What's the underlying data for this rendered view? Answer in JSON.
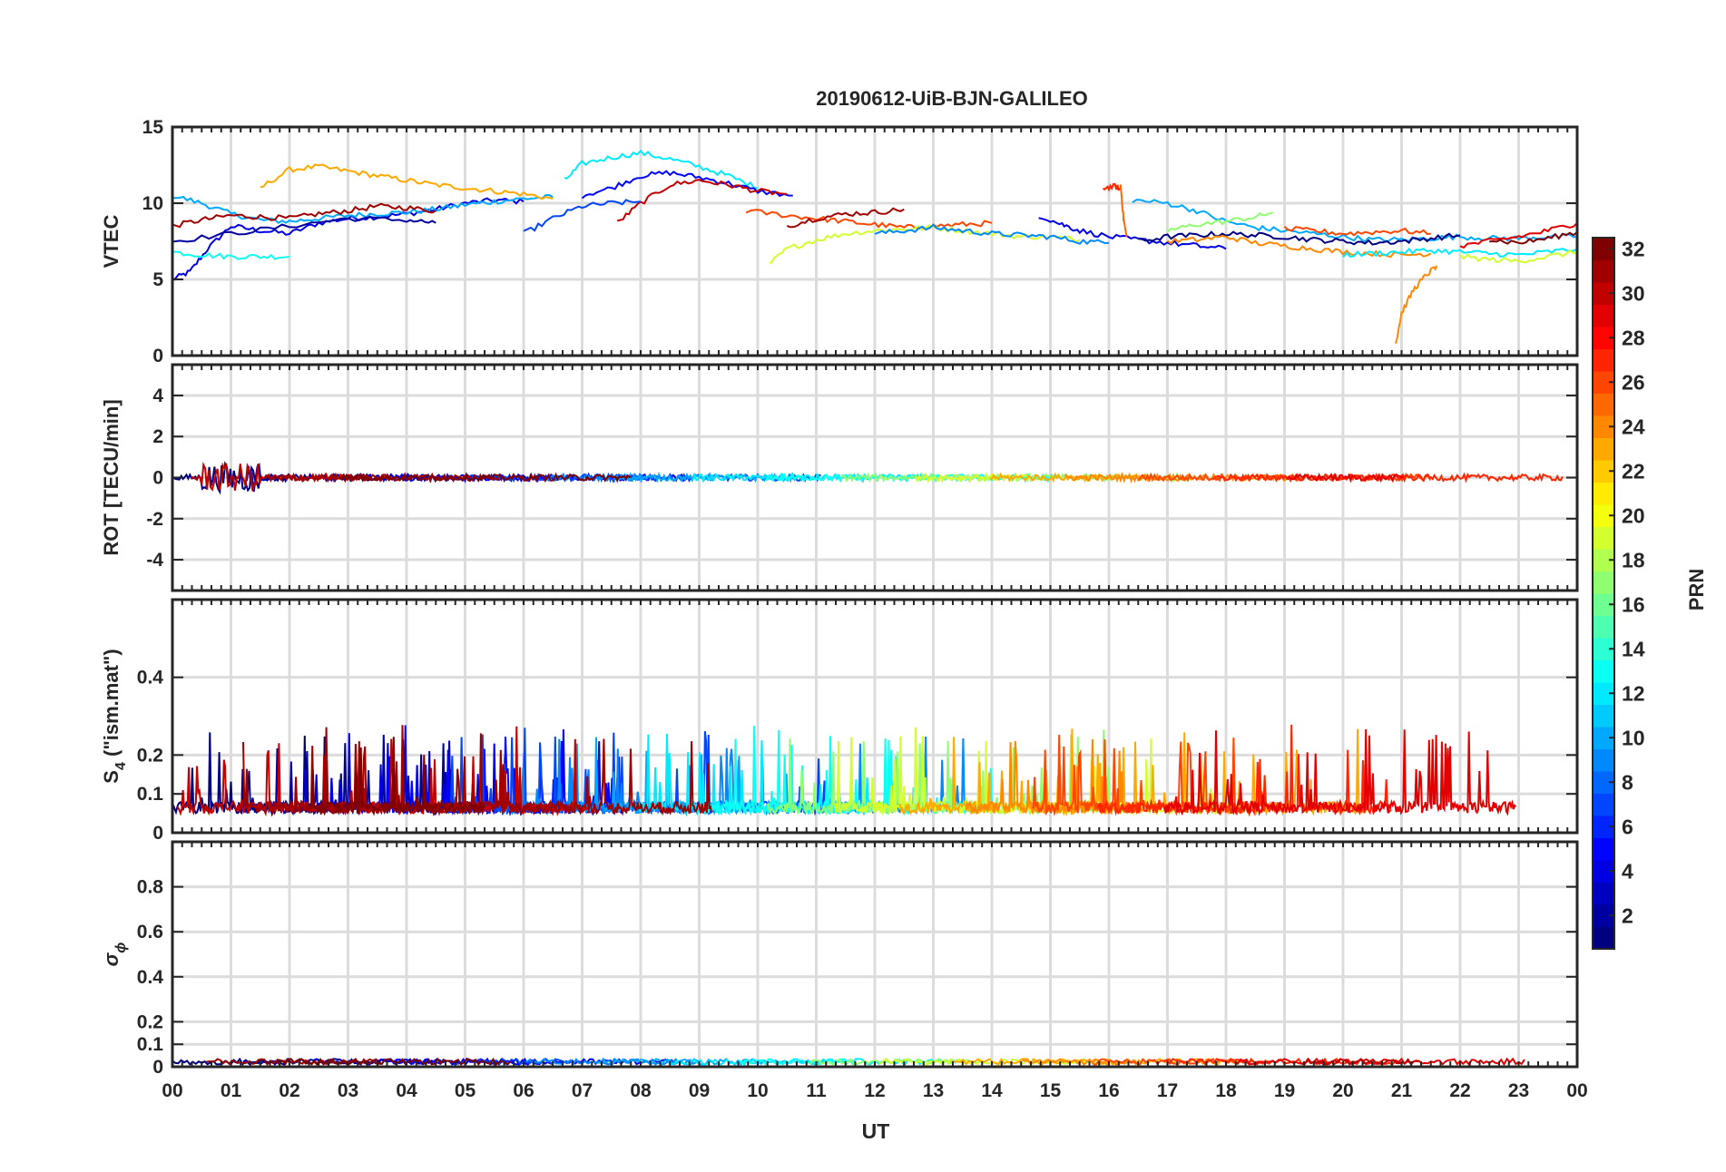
{
  "chart_data": {
    "type": "line",
    "title": "20190612-UiB-BJN-GALILEO",
    "xlabel": "UT",
    "x_ticklabels": [
      "00",
      "01",
      "02",
      "03",
      "04",
      "05",
      "06",
      "07",
      "08",
      "09",
      "10",
      "11",
      "12",
      "13",
      "14",
      "15",
      "16",
      "17",
      "18",
      "19",
      "20",
      "21",
      "22",
      "23",
      "00"
    ],
    "xlim": [
      0,
      24
    ],
    "grid": true,
    "colorbar": {
      "label": "PRN",
      "range": [
        1,
        32
      ],
      "ticks": [
        2,
        4,
        6,
        8,
        10,
        12,
        14,
        16,
        18,
        20,
        22,
        24,
        26,
        28,
        30,
        32
      ],
      "colormap": "jet"
    },
    "panels": [
      {
        "ylabel": "VTEC",
        "ylim": [
          0,
          15
        ],
        "yticks": [
          0,
          5,
          10,
          15
        ],
        "yticklabels": [
          "0",
          "5",
          "10",
          "15"
        ],
        "series": [
          {
            "prn": 4,
            "x": [
              0,
              0.3,
              0.6,
              1,
              1.5,
              2,
              2.5,
              3,
              3.5,
              4,
              4.5,
              5,
              5.5,
              6
            ],
            "y": [
              5,
              5.5,
              7,
              8.5,
              8.2,
              8,
              8.7,
              9,
              9.1,
              9.3,
              9.6,
              10,
              10.2,
              10.1
            ]
          },
          {
            "prn": 10,
            "x": [
              0,
              0.5,
              1,
              1.5,
              2,
              2.5,
              3,
              3.5,
              4,
              4.5,
              5,
              5.5,
              6,
              6.5
            ],
            "y": [
              10.5,
              10,
              9.3,
              8.9,
              8.8,
              9,
              9.2,
              9.3,
              9.4,
              9.6,
              9.9,
              10.1,
              10.3,
              10.4
            ]
          },
          {
            "prn": 23,
            "x": [
              1.5,
              2,
              2.5,
              3,
              3.5,
              4,
              4.5,
              5,
              5.5,
              6,
              6.5
            ],
            "y": [
              11,
              12.2,
              12.4,
              12.1,
              11.8,
              11.5,
              11.2,
              11,
              10.8,
              10.6,
              10.3
            ]
          },
          {
            "prn": 31,
            "x": [
              0,
              0.5,
              1,
              1.5,
              2,
              2.5,
              3,
              3.5,
              4,
              4.5
            ],
            "y": [
              8.5,
              8.9,
              9.2,
              9.1,
              9,
              9.3,
              9.5,
              9.8,
              9.7,
              9.5
            ]
          },
          {
            "prn": 13,
            "x": [
              0,
              0.5,
              1,
              1.5,
              2
            ],
            "y": [
              6.8,
              6.6,
              6.5,
              6.5,
              6.5
            ]
          },
          {
            "prn": 2,
            "x": [
              0,
              1,
              2,
              3,
              4,
              4.5
            ],
            "y": [
              7.5,
              8,
              8.5,
              9,
              8.9,
              8.7
            ]
          },
          {
            "prn": 12,
            "x": [
              6.7,
              7,
              7.5,
              8,
              8.5,
              9,
              9.5,
              10
            ],
            "y": [
              11.5,
              12.6,
              13,
              13.3,
              12.9,
              12.4,
              11.8,
              11
            ]
          },
          {
            "prn": 5,
            "x": [
              7,
              7.5,
              8,
              8.5,
              9,
              9.5,
              10,
              10.6
            ],
            "y": [
              10.5,
              11,
              11.8,
              12,
              11.7,
              11.3,
              10.8,
              10.5
            ]
          },
          {
            "prn": 30,
            "x": [
              7.6,
              8,
              8.5,
              9,
              9.5,
              10,
              10.5
            ],
            "y": [
              8.7,
              10,
              11.2,
              11.5,
              11.2,
              10.8,
              10.6
            ]
          },
          {
            "prn": 7,
            "x": [
              6,
              6.5,
              7,
              7.5,
              8
            ],
            "y": [
              8,
              9,
              9.8,
              10,
              10.1
            ]
          },
          {
            "prn": 26,
            "x": [
              9.8,
              10.5,
              11,
              11.5,
              12,
              12.5,
              13,
              13.5,
              14
            ],
            "y": [
              9.5,
              9.2,
              9,
              8.8,
              8.6,
              8.4,
              8.5,
              8.6,
              8.7
            ]
          },
          {
            "prn": 19,
            "x": [
              10.2,
              10.5,
              11,
              11.5,
              12,
              12.5,
              13,
              13.5,
              14,
              14.5,
              15,
              15.5
            ],
            "y": [
              6,
              7,
              7.6,
              8,
              8.2,
              8.3,
              8.4,
              8.2,
              8,
              7.8,
              7.8,
              7.6
            ]
          },
          {
            "prn": 31,
            "x": [
              10.5,
              11,
              11.5,
              12,
              12.5
            ],
            "y": [
              8.5,
              9,
              9.3,
              9.4,
              9.6
            ]
          },
          {
            "prn": 9,
            "x": [
              12,
              12.5,
              13,
              13.5,
              14,
              14.5,
              15,
              15.5,
              16
            ],
            "y": [
              8,
              8.2,
              8.4,
              8.2,
              8,
              7.9,
              7.8,
              7.5,
              7.4
            ]
          },
          {
            "prn": 4,
            "x": [
              14.8,
              15.2,
              15.5,
              16,
              16.5,
              17,
              17.5,
              18
            ],
            "y": [
              9.2,
              8.6,
              8.2,
              7.8,
              7.6,
              7.4,
              7.2,
              7
            ]
          },
          {
            "prn": 27,
            "x": [
              15.9,
              16.1,
              16.2
            ],
            "y": [
              11,
              11.1,
              10.9
            ]
          },
          {
            "prn": 25,
            "x": [
              16.2,
              16.25,
              16.3
            ],
            "y": [
              11.2,
              9,
              7.8
            ]
          },
          {
            "prn": 10,
            "x": [
              16.4,
              17,
              17.5,
              18,
              18.5,
              19,
              19.5,
              20,
              20.5,
              21,
              21.5,
              22,
              22.5,
              23,
              23.5,
              24
            ],
            "y": [
              10.2,
              10,
              9.5,
              8.8,
              8.4,
              8.2,
              8,
              7.8,
              7.6,
              7.6,
              7.7,
              7.8,
              7.7,
              7.7,
              7.8,
              7.8
            ]
          },
          {
            "prn": 17,
            "x": [
              17,
              17.5,
              18,
              18.5,
              18.8
            ],
            "y": [
              8.2,
              8.6,
              8.8,
              9.1,
              9.4
            ]
          },
          {
            "prn": 1,
            "x": [
              16.5,
              17,
              17.5,
              18,
              18.5,
              19,
              19.5,
              20,
              20.5,
              21,
              21.5,
              22
            ],
            "y": [
              7.5,
              7.8,
              7.9,
              8,
              7.9,
              7.8,
              7.6,
              7.5,
              7.4,
              7.5,
              7.7,
              7.9
            ]
          },
          {
            "prn": 24,
            "x": [
              17,
              17.5,
              18,
              18.5,
              19,
              19.5,
              20,
              20.5,
              21,
              21.5
            ],
            "y": [
              7.5,
              7.6,
              7.8,
              7.4,
              7.2,
              7,
              6.8,
              6.7,
              6.6,
              6.7
            ]
          },
          {
            "prn": 24,
            "x": [
              20.9,
              21,
              21.2,
              21.4,
              21.6
            ],
            "y": [
              0.8,
              2.8,
              4.3,
              5.2,
              5.9
            ]
          },
          {
            "prn": 26,
            "x": [
              19,
              19.5,
              20,
              20.5,
              21,
              21.5
            ],
            "y": [
              8.3,
              8.2,
              8,
              8.1,
              8.2,
              8
            ]
          },
          {
            "prn": 12,
            "x": [
              20,
              20.5,
              21,
              21.5,
              22,
              22.5,
              23,
              23.5,
              24
            ],
            "y": [
              6.6,
              6.7,
              6.8,
              6.9,
              6.8,
              6.7,
              6.6,
              6.8,
              7
            ]
          },
          {
            "prn": 19,
            "x": [
              22,
              22.5,
              23,
              23.5,
              24
            ],
            "y": [
              6.5,
              6.3,
              6.2,
              6.5,
              6.8
            ]
          },
          {
            "prn": 29,
            "x": [
              22,
              22.5,
              23,
              23.5,
              24
            ],
            "y": [
              7.2,
              7.5,
              7.8,
              8.2,
              8.7
            ]
          },
          {
            "prn": 32,
            "x": [
              22.5,
              23,
              23.5,
              24
            ],
            "y": [
              7.6,
              7.4,
              7.7,
              8.1
            ]
          }
        ]
      },
      {
        "ylabel": "ROT [TECU/min]",
        "ylim": [
          -5.5,
          5.5
        ],
        "yticks": [
          -4,
          -2,
          0,
          2,
          4
        ],
        "yticklabels": [
          "-4",
          "-2",
          "0",
          "2",
          "4"
        ]
      },
      {
        "ylabel": "S",
        "ylabel_sub": "4",
        "ylabel_rest": " (\"ism.mat\")",
        "ylim": [
          0,
          0.6
        ],
        "yticks": [
          0,
          0.1,
          0.2,
          0.4
        ],
        "yticklabels": [
          "0",
          "0.1",
          "0.2",
          "0.4"
        ]
      },
      {
        "ylabel": "σ",
        "ylabel_sub": "ϕ",
        "ylim": [
          0,
          1
        ],
        "yticks": [
          0,
          0.1,
          0.2,
          0.4,
          0.6,
          0.8
        ],
        "yticklabels": [
          "0",
          "0.1",
          "0.2",
          "0.4",
          "0.6",
          "0.8"
        ]
      }
    ]
  }
}
